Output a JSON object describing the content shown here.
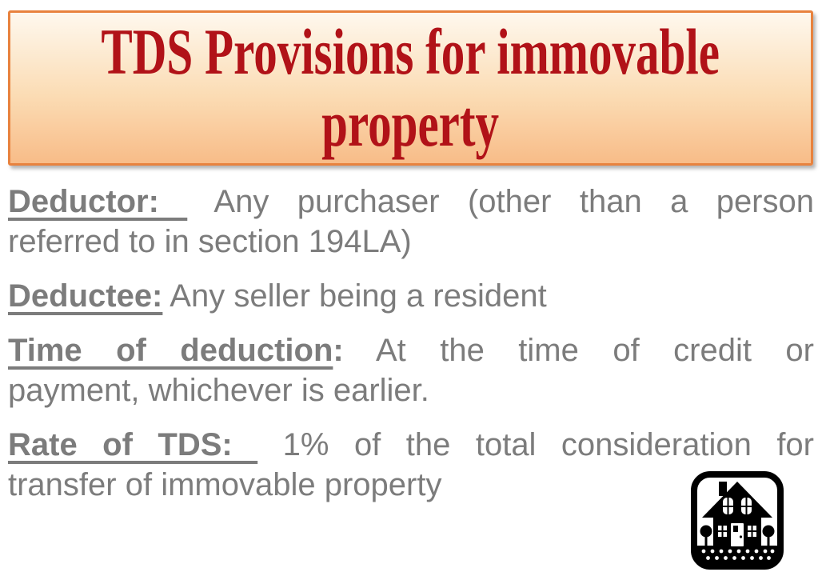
{
  "title": {
    "lines": [
      "TDS Provisions for immovable",
      "property"
    ],
    "full_text": "TDS Provisions for immovable property"
  },
  "body": {
    "paragraphs": [
      {
        "lines": [
          {
            "justify": true,
            "segments": [
              {
                "t": "Deductor: ",
                "style": "lead"
              },
              {
                "t": " Any purchaser (other than a person",
                "style": "normal"
              }
            ]
          },
          {
            "justify": false,
            "segments": [
              {
                "t": "referred to in section 194LA)",
                "style": "normal"
              }
            ]
          }
        ]
      },
      {
        "lines": [
          {
            "justify": false,
            "segments": [
              {
                "t": "Deductee:",
                "style": "lead"
              },
              {
                "t": " Any seller being a resident",
                "style": "normal"
              }
            ]
          }
        ]
      },
      {
        "lines": [
          {
            "justify": true,
            "segments": [
              {
                "t": "Time of deduction",
                "style": "lead"
              },
              {
                "t": ":",
                "style": "bold"
              },
              {
                "t": " At the time of credit or",
                "style": "normal"
              }
            ]
          },
          {
            "justify": false,
            "segments": [
              {
                "t": "payment, whichever is earlier.",
                "style": "normal"
              }
            ]
          }
        ]
      },
      {
        "lines": [
          {
            "justify": true,
            "segments": [
              {
                "t": "Rate of TDS: ",
                "style": "lead"
              },
              {
                "t": " 1% of the total consideration for",
                "style": "normal"
              }
            ]
          },
          {
            "justify": false,
            "segments": [
              {
                "t": "transfer of immovable property",
                "style": "normal"
              }
            ]
          }
        ]
      }
    ]
  },
  "icon": {
    "name": "house-icon",
    "description": "black clipart house with trees inside rounded-square frame"
  },
  "colors": {
    "banner_border": "#E8823E",
    "banner_gradient_top": "#FEF8EE",
    "banner_gradient_bottom": "#F8BC88",
    "title_text": "#B11218",
    "body_text": "#7C7C7C",
    "icon": "#000000",
    "background": "#FFFFFF"
  }
}
